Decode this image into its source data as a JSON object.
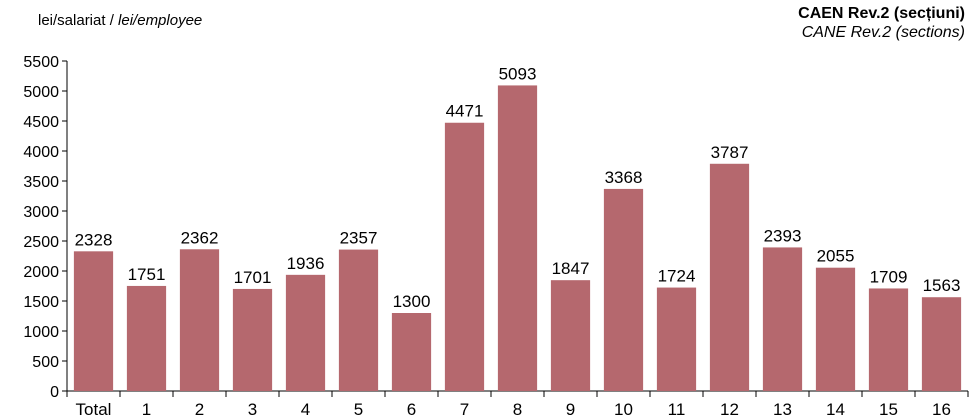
{
  "chart_data": {
    "type": "bar",
    "ylabel_ro": "lei/salariat / ",
    "ylabel_en": "lei/employee",
    "legend_ro": "CAEN Rev.2 (secțiuni)",
    "legend_en": "CANE Rev.2 (sections)",
    "categories": [
      "Total",
      "1",
      "2",
      "3",
      "4",
      "5",
      "6",
      "7",
      "8",
      "9",
      "10",
      "11",
      "12",
      "13",
      "14",
      "15",
      "16"
    ],
    "values": [
      2328,
      1751,
      2362,
      1701,
      1936,
      2357,
      1300,
      4471,
      5093,
      1847,
      3368,
      1724,
      3787,
      2393,
      2055,
      1709,
      1563
    ],
    "ylim": [
      0,
      5500
    ],
    "yticks": [
      0,
      500,
      1000,
      1500,
      2000,
      2500,
      3000,
      3500,
      4000,
      4500,
      5000,
      5500
    ],
    "bar_color": "#b5686e",
    "grid": false,
    "legend_position": "top-right"
  }
}
